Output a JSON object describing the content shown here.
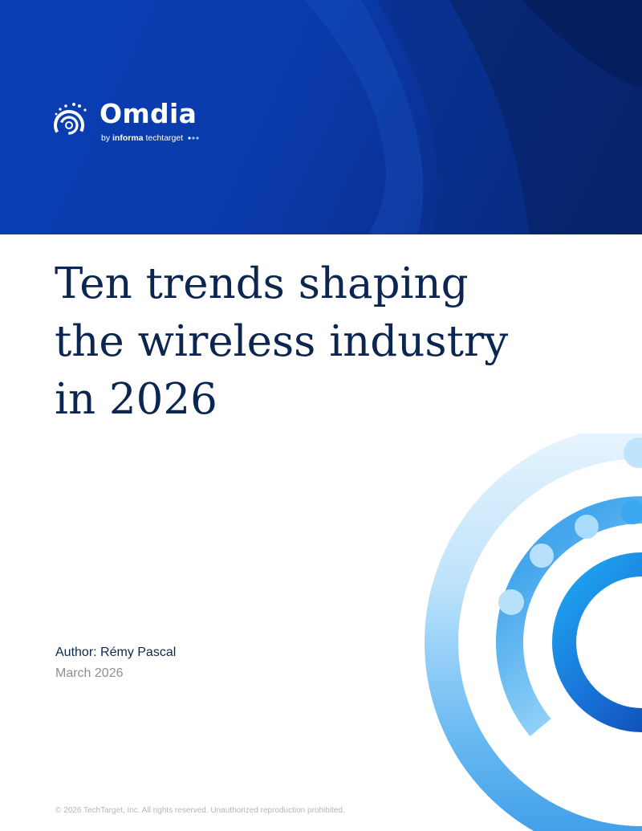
{
  "brand": {
    "name": "Omdia",
    "byline_prefix": "by",
    "byline_informa": "informa",
    "byline_techtarget": "techtarget"
  },
  "title_lines": [
    "Ten trends shaping",
    "the wireless industry",
    "in 2026"
  ],
  "author": "Author: Rémy Pascal",
  "date": "March 2026",
  "copyright": "© 2026 TechTarget, Inc. All rights reserved. Unauthorized reproduction prohibited.",
  "colors": {
    "banner_blue": "#0b3fb6",
    "title_navy": "#0c2652",
    "accent_light_blue": "#7cc8f8",
    "accent_deep_blue": "#0a3aa8"
  }
}
